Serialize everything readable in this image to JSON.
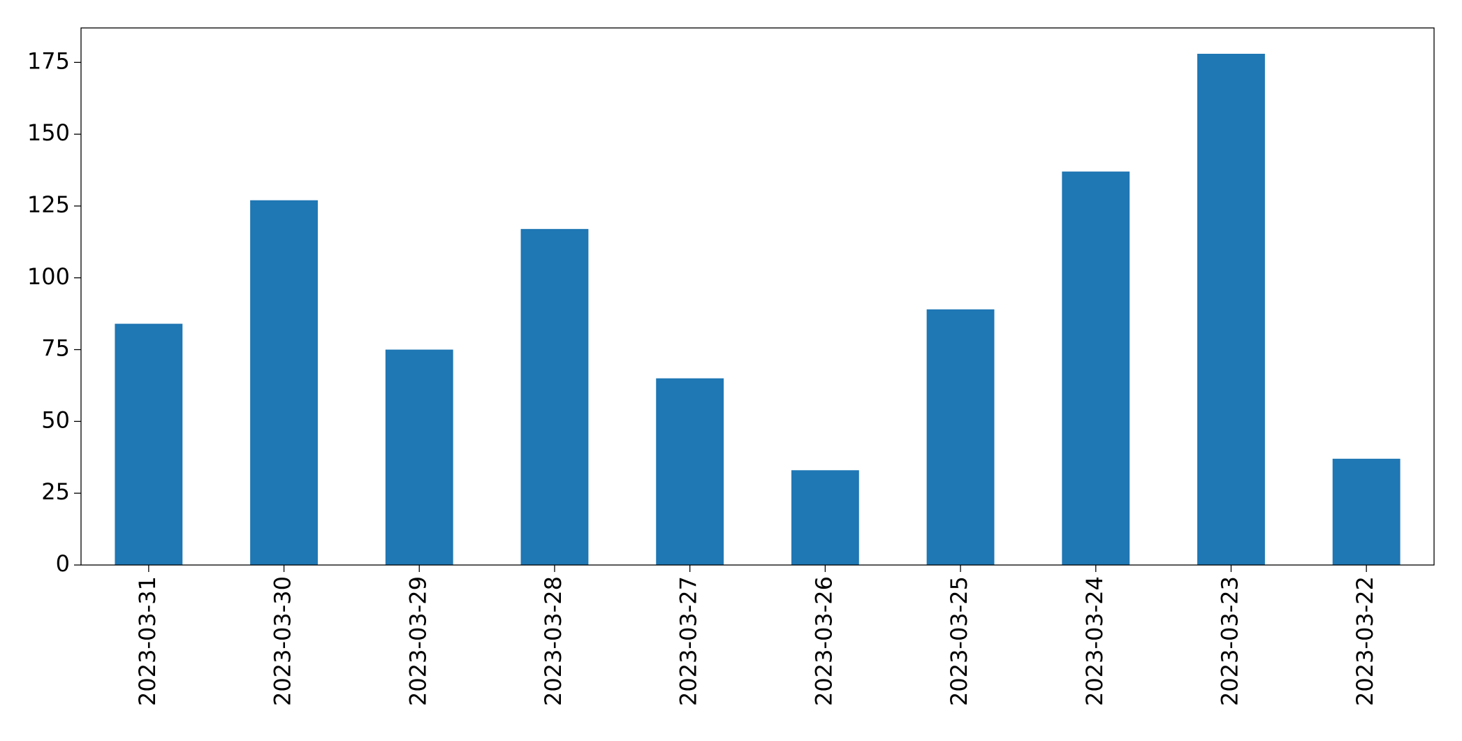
{
  "chart_data": {
    "type": "bar",
    "categories": [
      "2023-03-31",
      "2023-03-30",
      "2023-03-29",
      "2023-03-28",
      "2023-03-27",
      "2023-03-26",
      "2023-03-25",
      "2023-03-24",
      "2023-03-23",
      "2023-03-22"
    ],
    "values": [
      84,
      127,
      75,
      117,
      65,
      33,
      89,
      137,
      178,
      37
    ],
    "color": "#1f77b4",
    "ylim": [
      0,
      187
    ],
    "yticks": [
      0,
      25,
      50,
      75,
      100,
      125,
      150,
      175
    ],
    "grid": false
  }
}
